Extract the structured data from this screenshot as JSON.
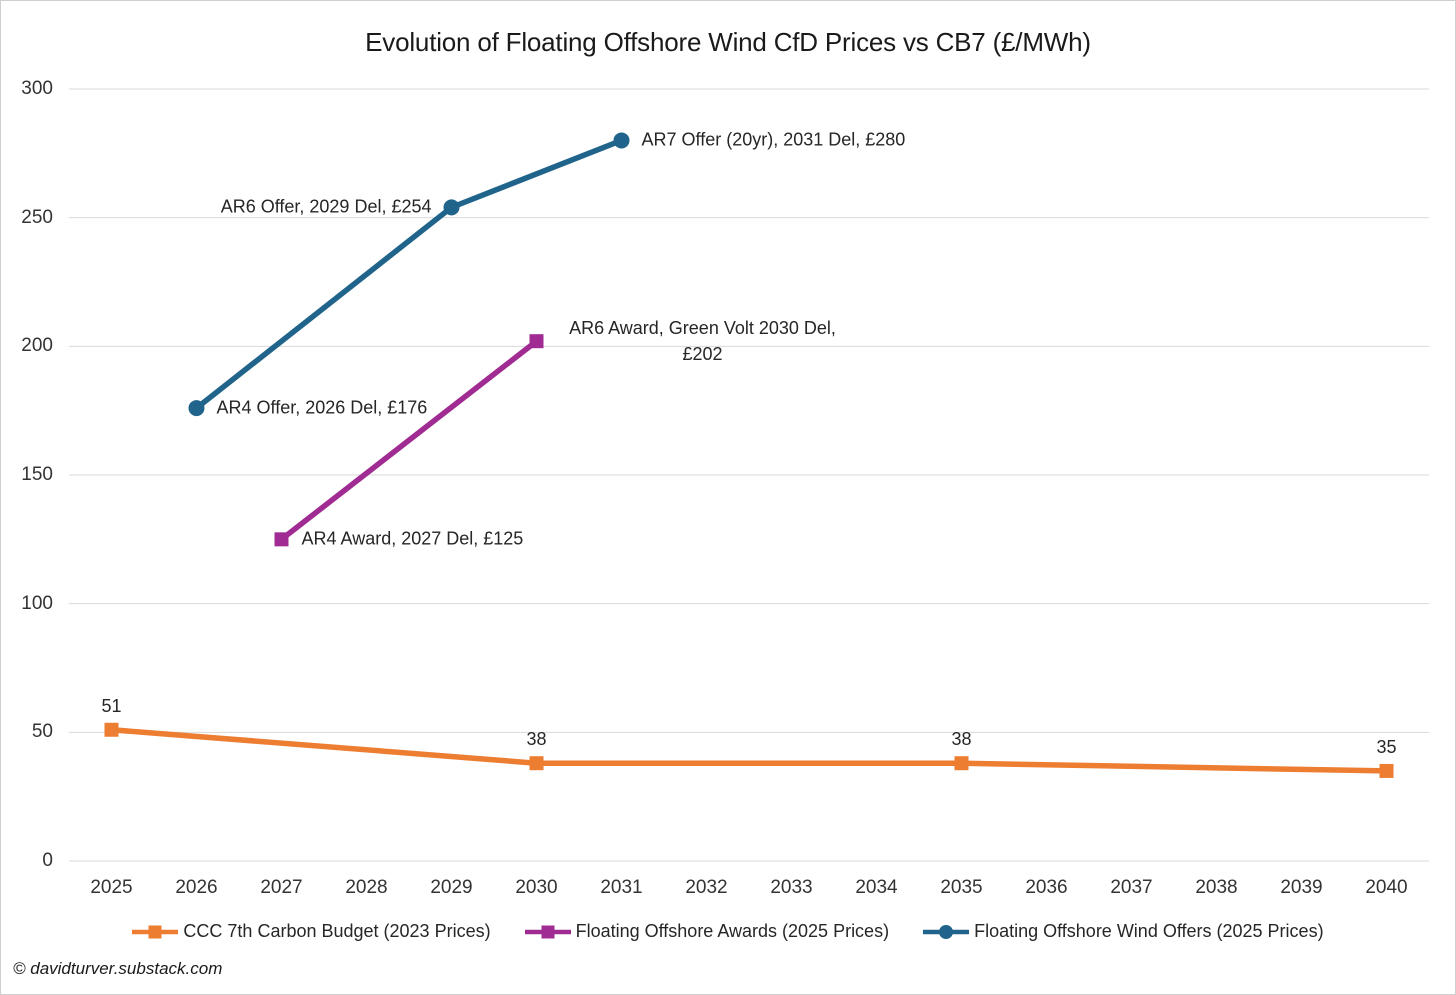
{
  "chart": {
    "title": "Evolution of Floating Offshore Wind CfD Prices vs CB7 (£/MWh)"
  },
  "footer": {
    "text": "© davidturver.substack.com"
  },
  "colors": {
    "ccc_budget": "#ED7D31",
    "awards": "#A02B93",
    "offers": "#20648B",
    "gridline": "#D9D9D9"
  },
  "chart_data": {
    "type": "line",
    "title": "Evolution of Floating Offshore Wind CfD Prices vs CB7 (£/MWh)",
    "xlabel": "",
    "ylabel": "",
    "x_categories": [
      "2025",
      "2026",
      "2027",
      "2028",
      "2029",
      "2030",
      "2031",
      "2032",
      "2033",
      "2034",
      "2035",
      "2036",
      "2037",
      "2038",
      "2039",
      "2040"
    ],
    "ylim": [
      0,
      300
    ],
    "y_ticks": [
      0,
      50,
      100,
      150,
      200,
      250,
      300
    ],
    "grid": true,
    "legend_position": "bottom",
    "series": [
      {
        "name": "CCC 7th Carbon Budget (2023 Prices)",
        "color": "#ED7D31",
        "marker": "square",
        "points": [
          {
            "x": "2025",
            "y": 51,
            "label": "51",
            "label_pos": "above"
          },
          {
            "x": "2030",
            "y": 38,
            "label": "38",
            "label_pos": "above"
          },
          {
            "x": "2035",
            "y": 38,
            "label": "38",
            "label_pos": "above"
          },
          {
            "x": "2040",
            "y": 35,
            "label": "35",
            "label_pos": "above"
          }
        ]
      },
      {
        "name": "Floating Offshore Awards (2025 Prices)",
        "color": "#A02B93",
        "marker": "square",
        "points": [
          {
            "x": "2027",
            "y": 125,
            "label": "AR4 Award, 2027 Del, £125",
            "label_pos": "right"
          },
          {
            "x": "2030",
            "y": 202,
            "label": "AR6 Award, Green Volt 2030 Del, £202",
            "label_pos": "right-wrap"
          }
        ]
      },
      {
        "name": "Floating Offshore Wind Offers (2025 Prices)",
        "color": "#20648B",
        "marker": "circle",
        "points": [
          {
            "x": "2026",
            "y": 176,
            "label": "AR4 Offer, 2026 Del, £176",
            "label_pos": "right"
          },
          {
            "x": "2029",
            "y": 254,
            "label": "AR6 Offer, 2029 Del, £254",
            "label_pos": "left"
          },
          {
            "x": "2031",
            "y": 280,
            "label": "AR7 Offer (20yr), 2031 Del, £280",
            "label_pos": "right"
          }
        ]
      }
    ]
  }
}
